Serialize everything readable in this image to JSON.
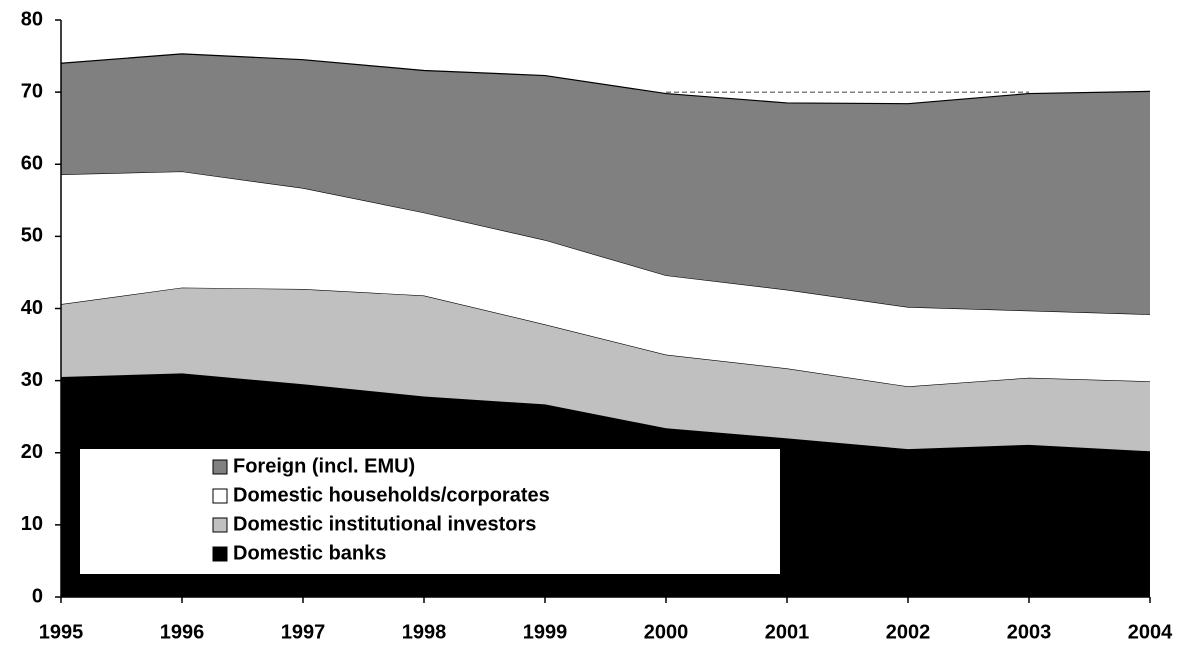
{
  "chart_data": {
    "type": "area",
    "stacked": true,
    "categories": [
      "1995",
      "1996",
      "1997",
      "1998",
      "1999",
      "2000",
      "2001",
      "2002",
      "2003",
      "2004"
    ],
    "series": [
      {
        "name": "Domestic banks",
        "color": "#000000",
        "values": [
          30.5,
          31.0,
          29.5,
          27.8,
          26.7,
          23.4,
          22.0,
          20.5,
          21.1,
          20.2
        ]
      },
      {
        "name": "Domestic institutional investors",
        "color": "#c0c0c0",
        "values": [
          10.1,
          11.9,
          13.2,
          14.0,
          11.1,
          10.2,
          9.7,
          8.7,
          9.3,
          9.7
        ]
      },
      {
        "name": "Domestic households/corporates",
        "color": "#ffffff",
        "values": [
          18.0,
          16.1,
          14.0,
          11.5,
          11.7,
          11.0,
          10.9,
          11.0,
          9.3,
          9.3
        ]
      },
      {
        "name": "Foreign (incl. EMU)",
        "color": "#808080",
        "values": [
          15.4,
          16.3,
          17.8,
          19.7,
          22.8,
          25.2,
          25.9,
          28.2,
          30.1,
          30.9
        ]
      }
    ],
    "reference_line": {
      "y": 70,
      "x": [
        "2000",
        "2003"
      ]
    },
    "ylim": [
      0,
      80
    ],
    "yticks": [
      0,
      10,
      20,
      30,
      40,
      50,
      60,
      70,
      80
    ],
    "legend": "lower left"
  }
}
